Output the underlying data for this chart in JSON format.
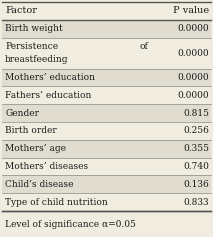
{
  "title_row": [
    "Factor",
    "P value"
  ],
  "rows": [
    [
      "Birth weight",
      "0.0000"
    ],
    [
      "Persistence   of\nbreastfeeding",
      "0.0000"
    ],
    [
      "Mothers’ education",
      "0.0000"
    ],
    [
      "Fathers’ education",
      "0.0000"
    ],
    [
      "Gender",
      "0.815"
    ],
    [
      "Birth order",
      "0.256"
    ],
    [
      "Mothers’ age",
      "0.355"
    ],
    [
      "Mothers’ diseases",
      "0.740"
    ],
    [
      "Child’s disease",
      "0.136"
    ],
    [
      "Type of child nutrition",
      "0.833"
    ]
  ],
  "footer": "Level of significance α=0.05",
  "bg_color": "#f0ece0",
  "row_bg_light": "#f0ece0",
  "row_bg_dark": "#e0dcd0",
  "border_color": "#555555",
  "text_color": "#1a1a1a",
  "font_size": 6.5,
  "header_font_size": 7.0,
  "footer_font_size": 6.5,
  "col_split": 0.72
}
